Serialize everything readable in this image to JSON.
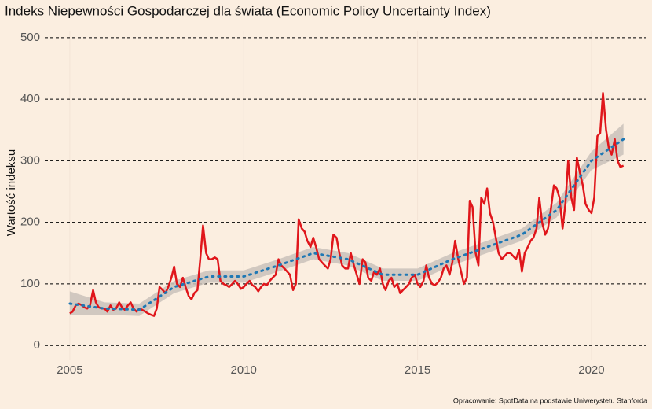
{
  "chart_data": {
    "type": "line",
    "title": "Indeks Niepewności Gospodarczej dla świata (Economic Policy Uncertainty Index)",
    "ylabel": "Wartość indeksu",
    "caption": "Opracowanie: SpotData na podstawie Uniwerystetu Stanforda",
    "xlim": [
      2004.28,
      2021.56
    ],
    "xticks": [
      2005,
      2010,
      2015,
      2020
    ],
    "ylim": [
      -24,
      510
    ],
    "yticks": [
      0,
      100,
      200,
      300,
      400,
      500
    ],
    "grid": true,
    "x": [
      2005,
      2005.08,
      2005.17,
      2005.25,
      2005.33,
      2005.42,
      2005.5,
      2005.58,
      2005.67,
      2005.75,
      2005.83,
      2005.92,
      2006,
      2006.08,
      2006.17,
      2006.25,
      2006.33,
      2006.42,
      2006.5,
      2006.58,
      2006.67,
      2006.75,
      2006.83,
      2006.92,
      2007,
      2007.08,
      2007.17,
      2007.25,
      2007.33,
      2007.42,
      2007.5,
      2007.58,
      2007.67,
      2007.75,
      2007.83,
      2007.92,
      2008,
      2008.08,
      2008.17,
      2008.25,
      2008.33,
      2008.42,
      2008.5,
      2008.58,
      2008.67,
      2008.75,
      2008.83,
      2008.92,
      2009,
      2009.08,
      2009.17,
      2009.25,
      2009.33,
      2009.42,
      2009.5,
      2009.58,
      2009.67,
      2009.75,
      2009.83,
      2009.92,
      2010,
      2010.08,
      2010.17,
      2010.25,
      2010.33,
      2010.42,
      2010.5,
      2010.58,
      2010.67,
      2010.75,
      2010.83,
      2010.92,
      2011,
      2011.08,
      2011.17,
      2011.25,
      2011.33,
      2011.42,
      2011.5,
      2011.58,
      2011.67,
      2011.75,
      2011.83,
      2011.92,
      2012,
      2012.08,
      2012.17,
      2012.25,
      2012.33,
      2012.42,
      2012.5,
      2012.58,
      2012.67,
      2012.75,
      2012.83,
      2012.92,
      2013,
      2013.08,
      2013.17,
      2013.25,
      2013.33,
      2013.42,
      2013.5,
      2013.58,
      2013.67,
      2013.75,
      2013.83,
      2013.92,
      2014,
      2014.08,
      2014.17,
      2014.25,
      2014.33,
      2014.42,
      2014.5,
      2014.58,
      2014.67,
      2014.75,
      2014.83,
      2014.92,
      2015,
      2015.08,
      2015.17,
      2015.25,
      2015.33,
      2015.42,
      2015.5,
      2015.58,
      2015.67,
      2015.75,
      2015.83,
      2015.92,
      2016,
      2016.08,
      2016.17,
      2016.25,
      2016.33,
      2016.42,
      2016.5,
      2016.58,
      2016.67,
      2016.75,
      2016.83,
      2016.92,
      2017,
      2017.08,
      2017.17,
      2017.25,
      2017.33,
      2017.42,
      2017.5,
      2017.58,
      2017.67,
      2017.75,
      2017.83,
      2017.92,
      2018,
      2018.08,
      2018.17,
      2018.25,
      2018.33,
      2018.42,
      2018.5,
      2018.58,
      2018.67,
      2018.75,
      2018.83,
      2018.92,
      2019,
      2019.08,
      2019.17,
      2019.25,
      2019.33,
      2019.42,
      2019.5,
      2019.58,
      2019.67,
      2019.75,
      2019.83,
      2019.92,
      2020,
      2020.08,
      2020.17,
      2020.25,
      2020.33,
      2020.42,
      2020.5,
      2020.58,
      2020.67,
      2020.75,
      2020.83,
      2020.92
    ],
    "series": [
      {
        "color": "#e0161b",
        "values": [
          52,
          55,
          65,
          68,
          66,
          62,
          60,
          65,
          90,
          70,
          62,
          60,
          60,
          55,
          65,
          58,
          60,
          70,
          62,
          58,
          65,
          70,
          60,
          55,
          60,
          58,
          55,
          52,
          50,
          48,
          60,
          95,
          90,
          85,
          95,
          110,
          128,
          100,
          95,
          110,
          95,
          80,
          75,
          85,
          90,
          140,
          195,
          150,
          140,
          140,
          143,
          140,
          105,
          100,
          98,
          95,
          100,
          105,
          100,
          92,
          95,
          100,
          105,
          98,
          95,
          88,
          95,
          100,
          98,
          105,
          110,
          115,
          140,
          130,
          125,
          120,
          115,
          90,
          100,
          205,
          190,
          185,
          170,
          160,
          175,
          160,
          140,
          135,
          130,
          125,
          140,
          180,
          175,
          150,
          130,
          125,
          125,
          150,
          130,
          115,
          100,
          140,
          135,
          110,
          105,
          120,
          115,
          125,
          100,
          90,
          105,
          110,
          95,
          100,
          85,
          90,
          95,
          100,
          110,
          115,
          100,
          95,
          105,
          130,
          110,
          100,
          98,
          102,
          110,
          125,
          130,
          115,
          135,
          170,
          140,
          120,
          100,
          110,
          235,
          225,
          150,
          130,
          240,
          230,
          255,
          215,
          200,
          175,
          150,
          140,
          145,
          150,
          150,
          145,
          140,
          155,
          120,
          150,
          160,
          170,
          175,
          190,
          240,
          200,
          180,
          190,
          220,
          260,
          255,
          240,
          190,
          230,
          300,
          240,
          220,
          305,
          280,
          260,
          230,
          220,
          215,
          240,
          340,
          345,
          410,
          350,
          320,
          310,
          335,
          300,
          290,
          292
        ]
      }
    ],
    "trend": {
      "color": "#1f78b4",
      "band_color": "#c9c1ba",
      "x": [
        2005,
        2006,
        2007,
        2008,
        2009,
        2010,
        2011,
        2012,
        2013,
        2014,
        2015,
        2016,
        2017,
        2018,
        2019,
        2020,
        2020.92
      ],
      "values": [
        68,
        60,
        58,
        95,
        112,
        112,
        130,
        150,
        140,
        115,
        115,
        140,
        160,
        180,
        220,
        300,
        335
      ],
      "lower": [
        50,
        50,
        48,
        85,
        102,
        102,
        120,
        140,
        130,
        105,
        105,
        130,
        150,
        170,
        208,
        285,
        310
      ],
      "upper": [
        88,
        70,
        68,
        105,
        122,
        122,
        140,
        160,
        150,
        125,
        125,
        150,
        170,
        190,
        232,
        315,
        360
      ]
    }
  }
}
